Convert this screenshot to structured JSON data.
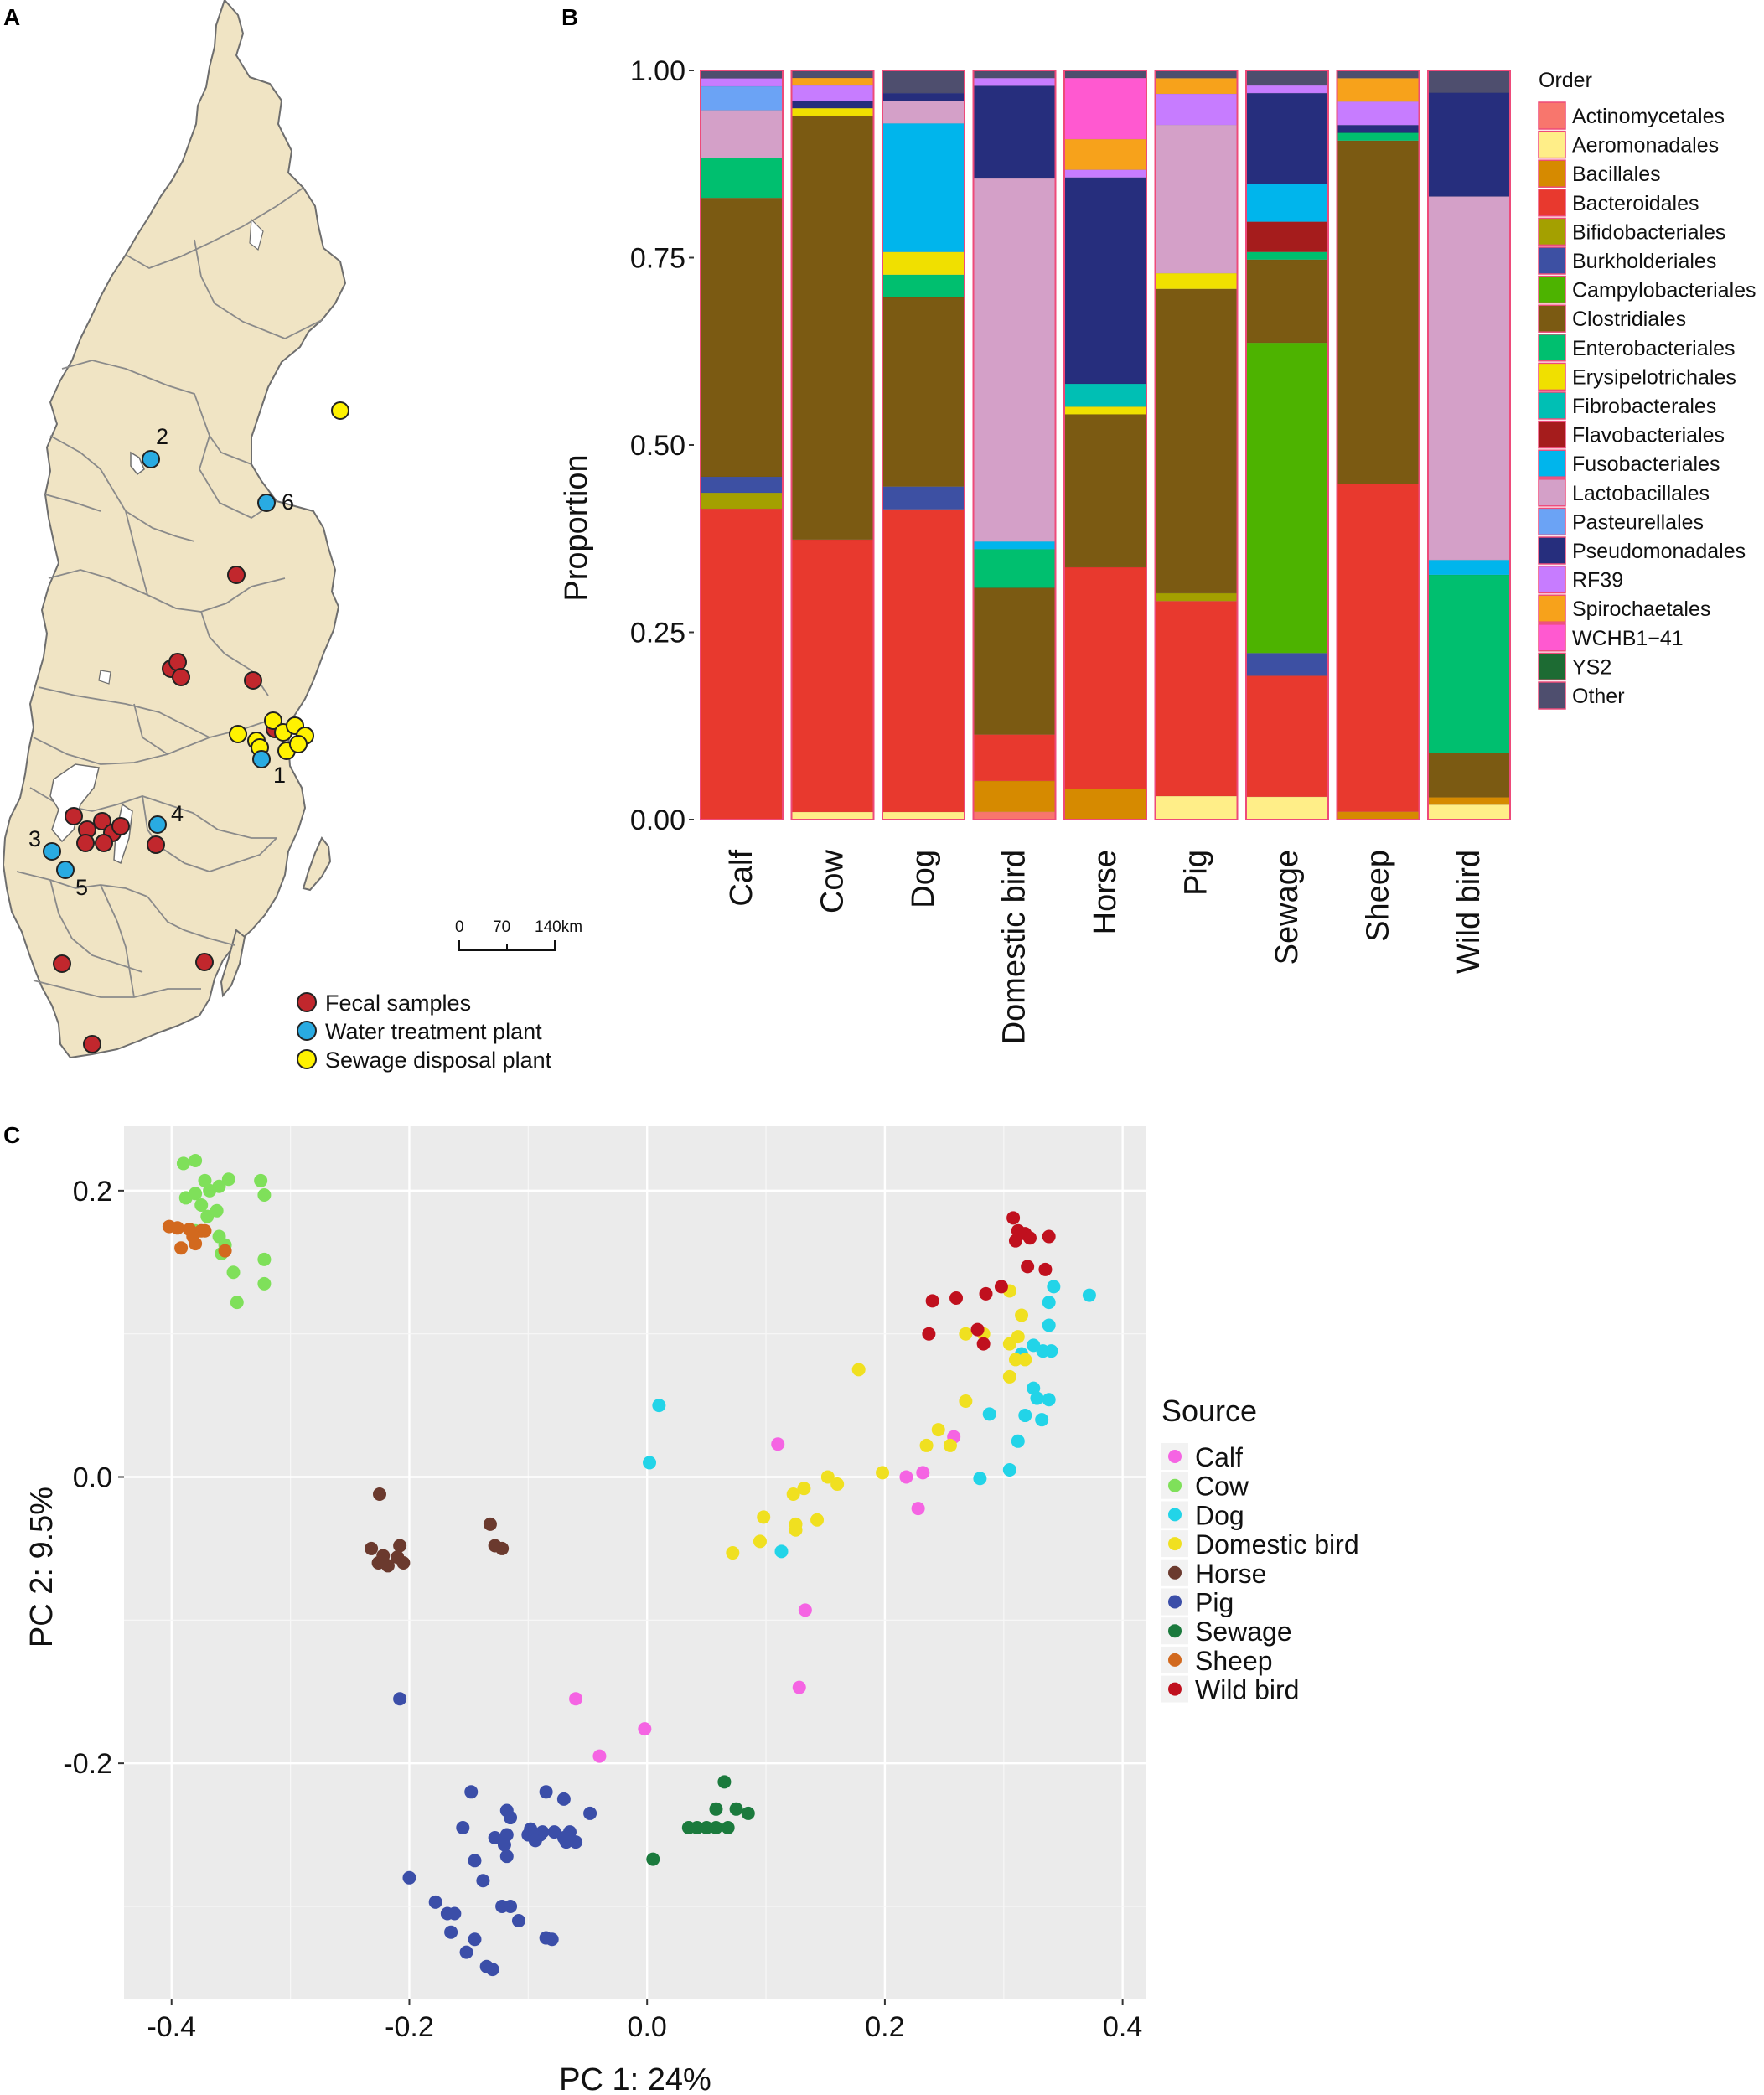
{
  "panels": {
    "a": "A",
    "b": "B",
    "c": "C"
  },
  "map": {
    "legend": [
      {
        "label": "Fecal samples",
        "color": "#c1272d"
      },
      {
        "label": "Water treatment plant",
        "color": "#29abe2"
      },
      {
        "label": "Sewage disposal plant",
        "color": "#fff200"
      }
    ],
    "site_labels": [
      "1",
      "2",
      "3",
      "4",
      "5",
      "6"
    ],
    "scale": {
      "ticks": [
        "0",
        "70",
        "140km"
      ]
    }
  },
  "chart_data": [
    {
      "type": "bar",
      "stacked": true,
      "title": "",
      "xlabel": "",
      "ylabel": "Proportion",
      "ylim": [
        0,
        1
      ],
      "yticks": [
        "0.00",
        "0.25",
        "0.50",
        "0.75",
        "1.00"
      ],
      "legend_title": "Order",
      "legend_position": "right",
      "categories": [
        "Calf",
        "Cow",
        "Dog",
        "Domestic bird",
        "Horse",
        "Pig",
        "Sewage",
        "Sheep",
        "Wild bird"
      ],
      "series": [
        {
          "name": "Actinomycetales",
          "color": "#f8766d",
          "values": [
            0.0,
            0.0,
            0.0,
            0.01,
            0.0,
            0.0,
            0.0,
            0.0,
            0.0
          ]
        },
        {
          "name": "Aeromonadales",
          "color": "#ffee88",
          "values": [
            0.0,
            0.01,
            0.01,
            0.0,
            0.0,
            0.03,
            0.03,
            0.0,
            0.02
          ]
        },
        {
          "name": "Bacillales",
          "color": "#d68a00",
          "values": [
            0.0,
            0.0,
            0.0,
            0.04,
            0.04,
            0.0,
            0.0,
            0.01,
            0.01
          ]
        },
        {
          "name": "Bacteroidales",
          "color": "#e8392e",
          "values": [
            0.39,
            0.36,
            0.4,
            0.06,
            0.29,
            0.25,
            0.16,
            0.42,
            0.0
          ]
        },
        {
          "name": "Bifidobacteriales",
          "color": "#a4a000",
          "values": [
            0.02,
            0.0,
            0.0,
            0.0,
            0.0,
            0.01,
            0.0,
            0.0,
            0.0
          ]
        },
        {
          "name": "Burkholderiales",
          "color": "#3d50a3",
          "values": [
            0.02,
            0.0,
            0.03,
            0.0,
            0.0,
            0.0,
            0.03,
            0.0,
            0.0
          ]
        },
        {
          "name": "Campylobacteriales",
          "color": "#4db300",
          "values": [
            0.0,
            0.0,
            0.0,
            0.0,
            0.0,
            0.0,
            0.41,
            0.0,
            0.0
          ]
        },
        {
          "name": "Clostridiales",
          "color": "#7b5a12",
          "values": [
            0.35,
            0.56,
            0.25,
            0.19,
            0.2,
            0.39,
            0.11,
            0.44,
            0.06
          ]
        },
        {
          "name": "Enterobacteriales",
          "color": "#00bf6f",
          "values": [
            0.05,
            0.0,
            0.03,
            0.05,
            0.0,
            0.0,
            0.01,
            0.01,
            0.24
          ]
        },
        {
          "name": "Erysipelotrichales",
          "color": "#f0e000",
          "values": [
            0.0,
            0.01,
            0.03,
            0.0,
            0.01,
            0.02,
            0.0,
            0.0,
            0.0
          ]
        },
        {
          "name": "Fibrobacterales",
          "color": "#00bfb4",
          "values": [
            0.0,
            0.0,
            0.0,
            0.0,
            0.03,
            0.0,
            0.0,
            0.0,
            0.0
          ]
        },
        {
          "name": "Flavobacteriales",
          "color": "#a51c1c",
          "values": [
            0.0,
            0.0,
            0.0,
            0.0,
            0.0,
            0.0,
            0.04,
            0.0,
            0.0
          ]
        },
        {
          "name": "Fusobacteriales",
          "color": "#00b5ec",
          "values": [
            0.0,
            0.0,
            0.17,
            0.01,
            0.0,
            0.0,
            0.05,
            0.0,
            0.02
          ]
        },
        {
          "name": "Lactobacillales",
          "color": "#d4a0c8",
          "values": [
            0.06,
            0.0,
            0.03,
            0.47,
            0.0,
            0.19,
            0.0,
            0.0,
            0.49
          ]
        },
        {
          "name": "Pasteurellales",
          "color": "#6ba3f5",
          "values": [
            0.03,
            0.0,
            0.0,
            0.0,
            0.0,
            0.0,
            0.0,
            0.0,
            0.0
          ]
        },
        {
          "name": "Pseudomonadales",
          "color": "#262e7d",
          "values": [
            0.0,
            0.01,
            0.01,
            0.12,
            0.27,
            0.0,
            0.12,
            0.01,
            0.14
          ]
        },
        {
          "name": "RF39",
          "color": "#c77cff",
          "values": [
            0.01,
            0.02,
            0.0,
            0.01,
            0.01,
            0.04,
            0.01,
            0.03,
            0.0
          ]
        },
        {
          "name": "Spirochaetales",
          "color": "#f7a21b",
          "values": [
            0.0,
            0.01,
            0.0,
            0.0,
            0.04,
            0.02,
            0.0,
            0.03,
            0.0
          ]
        },
        {
          "name": "WCHB1−41",
          "color": "#ff59d0",
          "values": [
            0.0,
            0.0,
            0.0,
            0.0,
            0.08,
            0.0,
            0.0,
            0.0,
            0.0
          ]
        },
        {
          "name": "YS2",
          "color": "#1d6b33",
          "values": [
            0.0,
            0.0,
            0.0,
            0.0,
            0.0,
            0.0,
            0.0,
            0.0,
            0.0
          ]
        },
        {
          "name": "Other",
          "color": "#4e4e6e",
          "values": [
            0.01,
            0.01,
            0.03,
            0.01,
            0.01,
            0.01,
            0.02,
            0.01,
            0.03
          ]
        }
      ]
    },
    {
      "type": "scatter",
      "title": "",
      "xlabel": "PC 1: 24%",
      "ylabel": "PC 2: 9.5%",
      "xlim": [
        -0.44,
        0.42
      ],
      "ylim": [
        -0.365,
        0.245
      ],
      "xticks": [
        -0.4,
        -0.2,
        0.0,
        0.2,
        0.4
      ],
      "xtick_labels": [
        "-0.4",
        "-0.2",
        "0.0",
        "0.2",
        "0.4"
      ],
      "yticks": [
        -0.2,
        0.0,
        0.2
      ],
      "ytick_labels": [
        "-0.2",
        "0.0",
        "0.2"
      ],
      "grid": true,
      "legend_title": "Source",
      "legend_position": "right",
      "series": [
        {
          "name": "Calf",
          "color": "#f564e3",
          "points": [
            [
              0.11,
              0.023
            ],
            [
              0.218,
              0.0
            ],
            [
              0.232,
              0.003
            ],
            [
              0.258,
              0.028
            ],
            [
              0.228,
              -0.022
            ],
            [
              0.133,
              -0.093
            ],
            [
              0.128,
              -0.147
            ],
            [
              -0.06,
              -0.155
            ],
            [
              -0.04,
              -0.195
            ],
            [
              -0.002,
              -0.176
            ]
          ]
        },
        {
          "name": "Cow",
          "color": "#7fe05a",
          "points": [
            [
              -0.39,
              0.219
            ],
            [
              -0.38,
              0.221
            ],
            [
              -0.372,
              0.207
            ],
            [
              -0.352,
              0.208
            ],
            [
              -0.325,
              0.207
            ],
            [
              -0.322,
              0.197
            ],
            [
              -0.36,
              0.203
            ],
            [
              -0.368,
              0.2
            ],
            [
              -0.38,
              0.198
            ],
            [
              -0.388,
              0.195
            ],
            [
              -0.375,
              0.19
            ],
            [
              -0.37,
              0.182
            ],
            [
              -0.362,
              0.186
            ],
            [
              -0.38,
              0.172
            ],
            [
              -0.36,
              0.168
            ],
            [
              -0.355,
              0.162
            ],
            [
              -0.358,
              0.156
            ],
            [
              -0.348,
              0.143
            ],
            [
              -0.322,
              0.152
            ],
            [
              -0.322,
              0.135
            ],
            [
              -0.345,
              0.122
            ]
          ]
        },
        {
          "name": "Dog",
          "color": "#22d4e8",
          "points": [
            [
              0.372,
              0.127
            ],
            [
              0.342,
              0.133
            ],
            [
              0.338,
              0.122
            ],
            [
              0.338,
              0.106
            ],
            [
              0.315,
              0.086
            ],
            [
              0.325,
              0.092
            ],
            [
              0.333,
              0.088
            ],
            [
              0.34,
              0.088
            ],
            [
              0.325,
              0.062
            ],
            [
              0.338,
              0.054
            ],
            [
              0.328,
              0.055
            ],
            [
              0.318,
              0.043
            ],
            [
              0.332,
              0.04
            ],
            [
              0.312,
              0.025
            ],
            [
              0.305,
              0.005
            ],
            [
              0.28,
              -0.001
            ],
            [
              0.288,
              0.044
            ],
            [
              0.01,
              0.05
            ],
            [
              0.002,
              0.01
            ],
            [
              0.113,
              -0.052
            ]
          ]
        },
        {
          "name": "Domestic bird",
          "color": "#f0e020",
          "points": [
            [
              0.305,
              0.13
            ],
            [
              0.315,
              0.113
            ],
            [
              0.312,
              0.098
            ],
            [
              0.305,
              0.093
            ],
            [
              0.283,
              0.1
            ],
            [
              0.268,
              0.1
            ],
            [
              0.31,
              0.082
            ],
            [
              0.318,
              0.082
            ],
            [
              0.305,
              0.07
            ],
            [
              0.268,
              0.053
            ],
            [
              0.245,
              0.033
            ],
            [
              0.235,
              0.022
            ],
            [
              0.255,
              0.022
            ],
            [
              0.198,
              0.003
            ],
            [
              0.178,
              0.075
            ],
            [
              0.152,
              0.0
            ],
            [
              0.16,
              -0.005
            ],
            [
              0.132,
              -0.008
            ],
            [
              0.123,
              -0.012
            ],
            [
              0.125,
              -0.033
            ],
            [
              0.125,
              -0.037
            ],
            [
              0.143,
              -0.03
            ],
            [
              0.098,
              -0.028
            ],
            [
              0.095,
              -0.045
            ],
            [
              0.072,
              -0.053
            ]
          ]
        },
        {
          "name": "Horse",
          "color": "#6b3a2e",
          "points": [
            [
              -0.225,
              -0.012
            ],
            [
              -0.232,
              -0.05
            ],
            [
              -0.208,
              -0.048
            ],
            [
              -0.222,
              -0.055
            ],
            [
              -0.226,
              -0.06
            ],
            [
              -0.218,
              -0.062
            ],
            [
              -0.21,
              -0.056
            ],
            [
              -0.205,
              -0.06
            ],
            [
              -0.132,
              -0.033
            ],
            [
              -0.128,
              -0.048
            ],
            [
              -0.122,
              -0.05
            ]
          ]
        },
        {
          "name": "Pig",
          "color": "#3b4ea8",
          "points": [
            [
              -0.208,
              -0.155
            ],
            [
              -0.2,
              -0.28
            ],
            [
              -0.178,
              -0.297
            ],
            [
              -0.168,
              -0.305
            ],
            [
              -0.162,
              -0.305
            ],
            [
              -0.165,
              -0.318
            ],
            [
              -0.152,
              -0.332
            ],
            [
              -0.145,
              -0.323
            ],
            [
              -0.135,
              -0.342
            ],
            [
              -0.13,
              -0.344
            ],
            [
              -0.138,
              -0.282
            ],
            [
              -0.145,
              -0.268
            ],
            [
              -0.155,
              -0.245
            ],
            [
              -0.128,
              -0.252
            ],
            [
              -0.118,
              -0.233
            ],
            [
              -0.115,
              -0.238
            ],
            [
              -0.118,
              -0.25
            ],
            [
              -0.12,
              -0.257
            ],
            [
              -0.118,
              -0.265
            ],
            [
              -0.115,
              -0.3
            ],
            [
              -0.148,
              -0.22
            ],
            [
              -0.108,
              -0.31
            ],
            [
              -0.085,
              -0.22
            ],
            [
              -0.07,
              -0.225
            ],
            [
              -0.088,
              -0.248
            ],
            [
              -0.078,
              -0.248
            ],
            [
              -0.065,
              -0.248
            ],
            [
              -0.06,
              -0.255
            ],
            [
              -0.085,
              -0.322
            ],
            [
              -0.08,
              -0.323
            ],
            [
              -0.07,
              -0.252
            ],
            [
              -0.068,
              -0.255
            ],
            [
              -0.048,
              -0.235
            ],
            [
              -0.1,
              -0.25
            ],
            [
              -0.098,
              -0.246
            ],
            [
              -0.09,
              -0.25
            ],
            [
              -0.094,
              -0.254
            ],
            [
              -0.122,
              -0.3
            ]
          ]
        },
        {
          "name": "Sewage",
          "color": "#1b7a3d",
          "points": [
            [
              0.005,
              -0.267
            ],
            [
              0.035,
              -0.245
            ],
            [
              0.042,
              -0.245
            ],
            [
              0.05,
              -0.245
            ],
            [
              0.058,
              -0.245
            ],
            [
              0.068,
              -0.245
            ],
            [
              0.058,
              -0.232
            ],
            [
              0.075,
              -0.232
            ],
            [
              0.085,
              -0.235
            ],
            [
              0.065,
              -0.213
            ]
          ]
        },
        {
          "name": "Sheep",
          "color": "#d2691e",
          "points": [
            [
              -0.402,
              0.175
            ],
            [
              -0.395,
              0.174
            ],
            [
              -0.385,
              0.173
            ],
            [
              -0.375,
              0.172
            ],
            [
              -0.382,
              0.168
            ],
            [
              -0.392,
              0.16
            ],
            [
              -0.38,
              0.163
            ],
            [
              -0.372,
              0.172
            ],
            [
              -0.355,
              0.158
            ]
          ]
        },
        {
          "name": "Wild bird",
          "color": "#c0101e",
          "points": [
            [
              0.308,
              0.181
            ],
            [
              0.312,
              0.172
            ],
            [
              0.31,
              0.165
            ],
            [
              0.318,
              0.17
            ],
            [
              0.322,
              0.167
            ],
            [
              0.338,
              0.168
            ],
            [
              0.32,
              0.147
            ],
            [
              0.335,
              0.145
            ],
            [
              0.298,
              0.133
            ],
            [
              0.285,
              0.128
            ],
            [
              0.26,
              0.125
            ],
            [
              0.24,
              0.123
            ],
            [
              0.237,
              0.1
            ],
            [
              0.278,
              0.103
            ],
            [
              0.283,
              0.093
            ]
          ]
        }
      ]
    }
  ]
}
